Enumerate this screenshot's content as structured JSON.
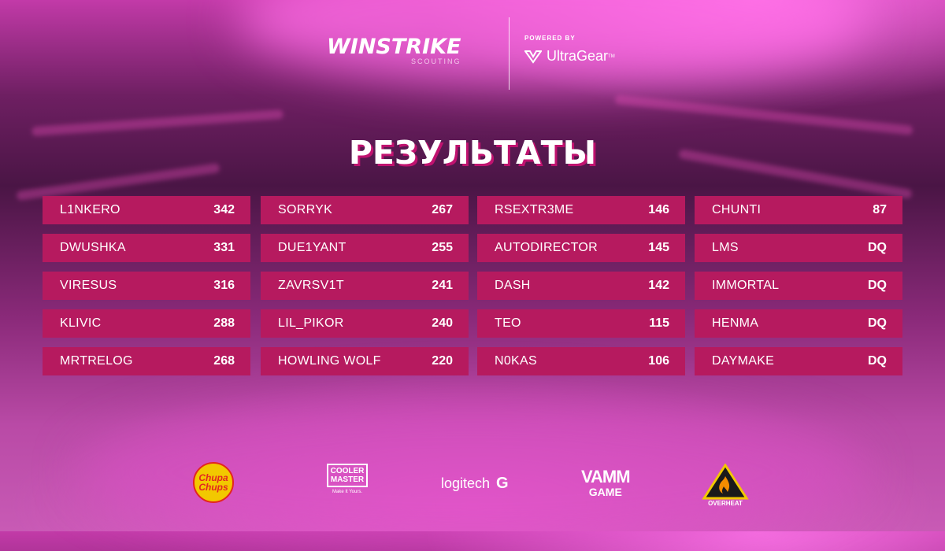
{
  "header": {
    "brand_name": "WINSTRIKE",
    "brand_sub": "SCOUTING",
    "powered_by": "POWERED BY",
    "partner_name": "UltraGear",
    "partner_tm": "TM"
  },
  "title": "РЕЗУЛЬТАТЫ",
  "columns": [
    [
      {
        "player": "L1NKERO",
        "score": "342"
      },
      {
        "player": "DWUSHKA",
        "score": "331"
      },
      {
        "player": "VIRESUS",
        "score": "316"
      },
      {
        "player": "KLIVIC",
        "score": "288"
      },
      {
        "player": "MRTRELOG",
        "score": "268"
      }
    ],
    [
      {
        "player": "SORRYK",
        "score": "267"
      },
      {
        "player": "DUE1YANT",
        "score": "255"
      },
      {
        "player": "ZAVRSV1T",
        "score": "241"
      },
      {
        "player": "LIL_PIKOR",
        "score": "240"
      },
      {
        "player": "HOWLING WOLF",
        "score": "220"
      }
    ],
    [
      {
        "player": "RSEXTR3ME",
        "score": "146"
      },
      {
        "player": "AUTODIRECTOR",
        "score": "145"
      },
      {
        "player": "DASH",
        "score": "142"
      },
      {
        "player": "TEO",
        "score": "115"
      },
      {
        "player": "N0KAS",
        "score": "106"
      }
    ],
    [
      {
        "player": "CHUNTI",
        "score": "87"
      },
      {
        "player": "LMS",
        "score": "DQ"
      },
      {
        "player": "IMMORTAL",
        "score": "DQ"
      },
      {
        "player": "HENMA",
        "score": "DQ"
      },
      {
        "player": "DAYMAKE",
        "score": "DQ"
      }
    ]
  ],
  "sponsors": {
    "chupa_chups": "Chupa Chups",
    "cooler_master_line1": "COOLER",
    "cooler_master_line2": "MASTER",
    "cooler_master_tag": "Make It Yours.",
    "logitech": "logitech",
    "logitech_g": "G",
    "vamm_line1": "VAMM",
    "vamm_line2": "GAME",
    "overheat": "OVERHEAT"
  },
  "colors": {
    "row_bg": "#b61a5f",
    "title_shadow": "#c0126f",
    "text": "#ffffff"
  }
}
